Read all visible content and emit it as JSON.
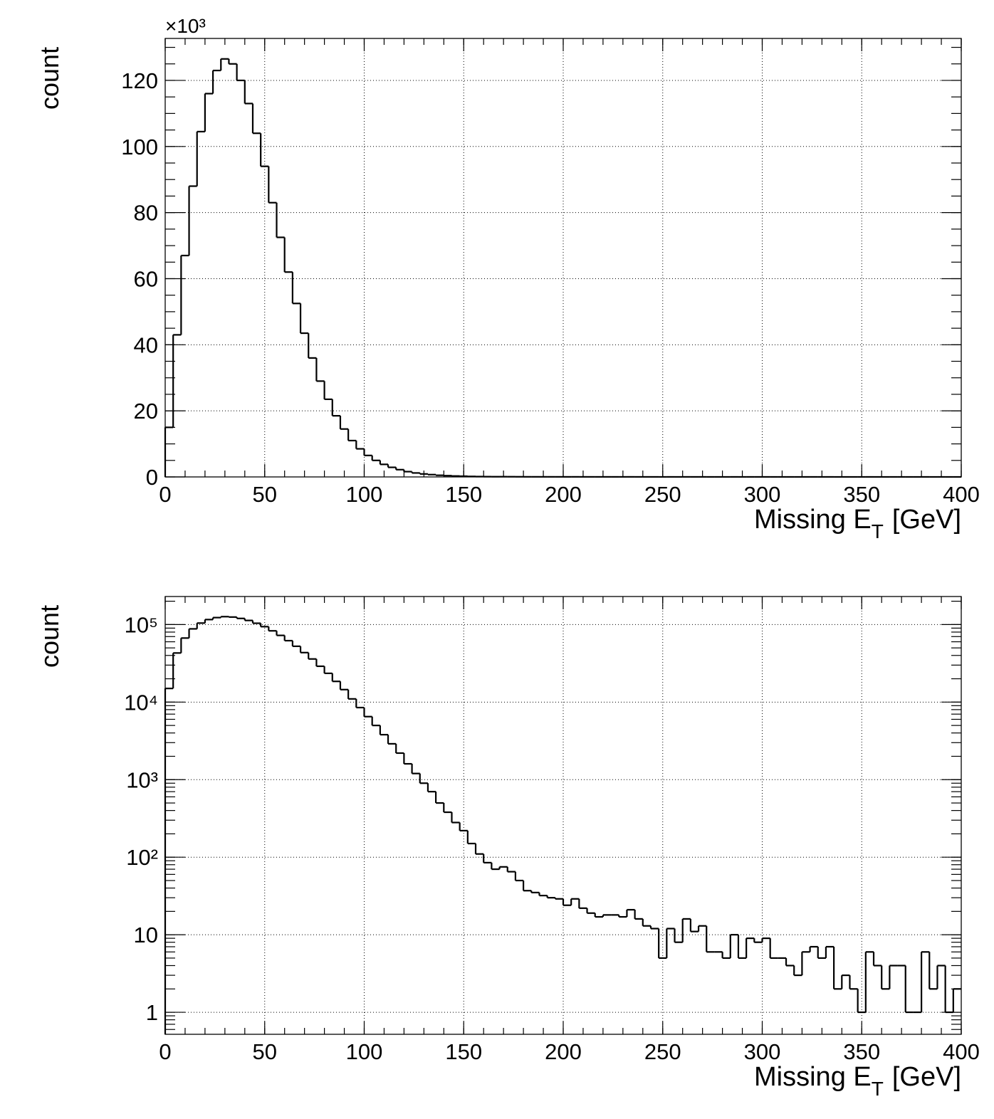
{
  "chart_data": [
    {
      "type": "histogram",
      "ylabel": "count",
      "multiplier": "×10³",
      "xlabel": {
        "text": "Missing E",
        "subscript": "T",
        "suffix": "[GeV]"
      },
      "bins": [
        0,
        4,
        8,
        12,
        16,
        20,
        24,
        28,
        32,
        36,
        40,
        44,
        48,
        52,
        56,
        60,
        64,
        68,
        72,
        76,
        80,
        84,
        88,
        92,
        96,
        100,
        104,
        108,
        112,
        116,
        120,
        124,
        128,
        132,
        136,
        140,
        144,
        148,
        152,
        156,
        160,
        164,
        168,
        172,
        176,
        180,
        184,
        188,
        192,
        196,
        200,
        204,
        208,
        212,
        216,
        220,
        224,
        228,
        232,
        236,
        240,
        244,
        248,
        252,
        256,
        260,
        264,
        268,
        272,
        276,
        280,
        284,
        288,
        292,
        296,
        300,
        304,
        308,
        312,
        316,
        320,
        324,
        328,
        332,
        336,
        340,
        344,
        348,
        352,
        356,
        360,
        364,
        368,
        372,
        376,
        380,
        384,
        388,
        392,
        396,
        400
      ],
      "counts": [
        15000,
        43000,
        67000,
        88000,
        104500,
        116000,
        123000,
        126500,
        125000,
        120000,
        113000,
        104000,
        94000,
        83000,
        72500,
        62000,
        52500,
        43500,
        36000,
        29000,
        23500,
        18500,
        14500,
        11000,
        8500,
        6500,
        5000,
        3800,
        2900,
        2200,
        1600,
        1200,
        900,
        700,
        500,
        380,
        280,
        220,
        150,
        110,
        85,
        70,
        75,
        65,
        50,
        37,
        35,
        32,
        30,
        29,
        24,
        29,
        22,
        19,
        17,
        18,
        18,
        17,
        21,
        16,
        13,
        12,
        5,
        12,
        8,
        16,
        11,
        13,
        6,
        6,
        5,
        10,
        5,
        9,
        8,
        9,
        5,
        5,
        4,
        3,
        6,
        7,
        5,
        7,
        2,
        3,
        2,
        1,
        6,
        4,
        2,
        4,
        4,
        1,
        1,
        6,
        2,
        4,
        1,
        2
      ],
      "color": "#000000",
      "log": false,
      "grid": true,
      "xlim": [
        0,
        400
      ],
      "xticks": [
        0,
        50,
        100,
        150,
        200,
        250,
        300,
        350,
        400
      ],
      "ylim": [
        0,
        132700
      ],
      "yticks": [
        {
          "value": 0,
          "label": "0"
        },
        {
          "value": 20000,
          "label": "20"
        },
        {
          "value": 40000,
          "label": "40"
        },
        {
          "value": 60000,
          "label": "60"
        },
        {
          "value": 80000,
          "label": "80"
        },
        {
          "value": 100000,
          "label": "100"
        },
        {
          "value": 120000,
          "label": "120"
        }
      ]
    },
    {
      "type": "histogram",
      "ylabel": "count",
      "xlabel": {
        "text": "Missing E",
        "subscript": "T",
        "suffix": "[GeV]"
      },
      "bins": [
        0,
        4,
        8,
        12,
        16,
        20,
        24,
        28,
        32,
        36,
        40,
        44,
        48,
        52,
        56,
        60,
        64,
        68,
        72,
        76,
        80,
        84,
        88,
        92,
        96,
        100,
        104,
        108,
        112,
        116,
        120,
        124,
        128,
        132,
        136,
        140,
        144,
        148,
        152,
        156,
        160,
        164,
        168,
        172,
        176,
        180,
        184,
        188,
        192,
        196,
        200,
        204,
        208,
        212,
        216,
        220,
        224,
        228,
        232,
        236,
        240,
        244,
        248,
        252,
        256,
        260,
        264,
        268,
        272,
        276,
        280,
        284,
        288,
        292,
        296,
        300,
        304,
        308,
        312,
        316,
        320,
        324,
        328,
        332,
        336,
        340,
        344,
        348,
        352,
        356,
        360,
        364,
        368,
        372,
        376,
        380,
        384,
        388,
        392,
        396,
        400
      ],
      "counts": [
        15000,
        43000,
        67000,
        88000,
        104500,
        116000,
        123000,
        126500,
        125000,
        120000,
        113000,
        104000,
        94000,
        83000,
        72500,
        62000,
        52500,
        43500,
        36000,
        29000,
        23500,
        18500,
        14500,
        11000,
        8500,
        6500,
        5000,
        3800,
        2900,
        2200,
        1600,
        1200,
        900,
        700,
        500,
        380,
        280,
        220,
        150,
        110,
        85,
        70,
        75,
        65,
        50,
        37,
        35,
        32,
        30,
        29,
        24,
        29,
        22,
        19,
        17,
        18,
        18,
        17,
        21,
        16,
        13,
        12,
        5,
        12,
        8,
        16,
        11,
        13,
        6,
        6,
        5,
        10,
        5,
        9,
        8,
        9,
        5,
        5,
        4,
        3,
        6,
        7,
        5,
        7,
        2,
        3,
        2,
        1,
        6,
        4,
        2,
        4,
        4,
        1,
        1,
        6,
        2,
        4,
        1,
        2
      ],
      "color": "#000000",
      "log": true,
      "grid": true,
      "xlim": [
        0,
        400
      ],
      "xticks": [
        0,
        50,
        100,
        150,
        200,
        250,
        300,
        350,
        400
      ],
      "ylim": [
        0.52,
        230000
      ],
      "yticks": [
        1,
        10,
        {
          "value": 100,
          "label": "10²"
        },
        {
          "value": 1000,
          "label": "10³"
        },
        {
          "value": 10000,
          "label": "10⁴"
        },
        {
          "value": 100000,
          "label": "10⁵"
        }
      ]
    }
  ]
}
